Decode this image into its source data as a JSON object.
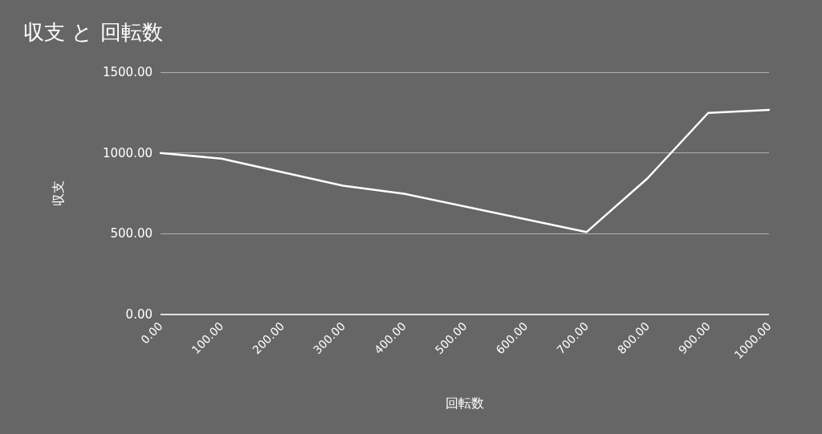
{
  "chart_data": {
    "type": "line",
    "title": "収支 と 回転数",
    "xlabel": "回転数",
    "ylabel": "収支",
    "x": [
      0,
      100,
      300,
      400,
      700,
      800,
      900,
      1000
    ],
    "series": [
      {
        "color": "#ffffff",
        "values": [
          1000,
          965,
          797,
          748,
          510,
          842,
          1248,
          1267
        ]
      }
    ],
    "xlim": [
      0,
      1000
    ],
    "xticks": [
      {
        "value": 0,
        "label": "0.00"
      },
      {
        "value": 100,
        "label": "100.00"
      },
      {
        "value": 200,
        "label": "200.00"
      },
      {
        "value": 300,
        "label": "300.00"
      },
      {
        "value": 400,
        "label": "400.00"
      },
      {
        "value": 500,
        "label": "500.00"
      },
      {
        "value": 600,
        "label": "600.00"
      },
      {
        "value": 700,
        "label": "700.00"
      },
      {
        "value": 800,
        "label": "800.00"
      },
      {
        "value": 900,
        "label": "900.00"
      },
      {
        "value": 1000,
        "label": "1000.00"
      }
    ],
    "ylim": [
      0,
      1500
    ],
    "yticks": [
      {
        "value": 0,
        "label": "0.00"
      },
      {
        "value": 500,
        "label": "500.00"
      },
      {
        "value": 1000,
        "label": "1000.00"
      },
      {
        "value": 1500,
        "label": "1500.00"
      }
    ],
    "grid": "y",
    "marker": "none",
    "line_style": "solid"
  }
}
